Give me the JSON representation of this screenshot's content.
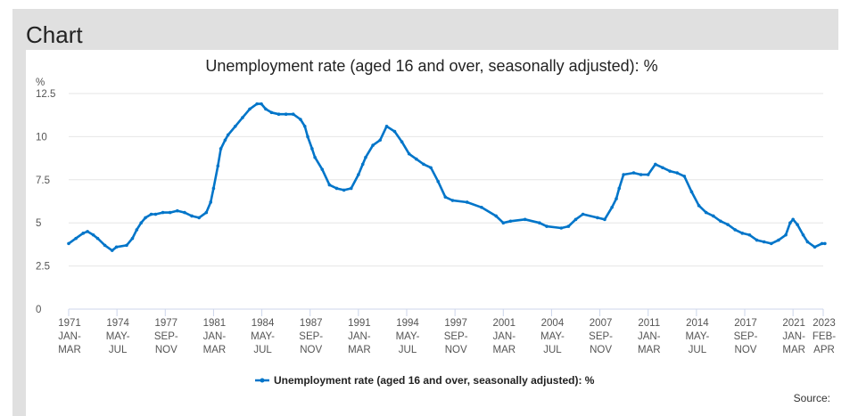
{
  "header": {
    "title": "Chart"
  },
  "source_label": "Source:",
  "chart_data": {
    "type": "line",
    "title": "Unemployment rate (aged 16 and over, seasonally adjusted): %",
    "ylabel": "%",
    "xlabel": "",
    "ylim": [
      0,
      12.5
    ],
    "yticks": [
      "0",
      "2.5",
      "5",
      "7.5",
      "10",
      "12.5"
    ],
    "grid": true,
    "legend_position": "bottom-center",
    "color": "#0075c9",
    "xticks": [
      {
        "year": "1971",
        "period": [
          "JAN-",
          "MAR"
        ],
        "months_from_start": 0
      },
      {
        "year": "1974",
        "period": [
          "MAY-",
          "JUL"
        ],
        "months_from_start": 40
      },
      {
        "year": "1977",
        "period": [
          "SEP-",
          "NOV"
        ],
        "months_from_start": 80
      },
      {
        "year": "1981",
        "period": [
          "JAN-",
          "MAR"
        ],
        "months_from_start": 120
      },
      {
        "year": "1984",
        "period": [
          "MAY-",
          "JUL"
        ],
        "months_from_start": 160
      },
      {
        "year": "1987",
        "period": [
          "SEP-",
          "NOV"
        ],
        "months_from_start": 200
      },
      {
        "year": "1991",
        "period": [
          "JAN-",
          "MAR"
        ],
        "months_from_start": 240
      },
      {
        "year": "1994",
        "period": [
          "MAY-",
          "JUL"
        ],
        "months_from_start": 280
      },
      {
        "year": "1997",
        "period": [
          "SEP-",
          "NOV"
        ],
        "months_from_start": 320
      },
      {
        "year": "2001",
        "period": [
          "JAN-",
          "MAR"
        ],
        "months_from_start": 360
      },
      {
        "year": "2004",
        "period": [
          "MAY-",
          "JUL"
        ],
        "months_from_start": 400
      },
      {
        "year": "2007",
        "period": [
          "SEP-",
          "NOV"
        ],
        "months_from_start": 440
      },
      {
        "year": "2011",
        "period": [
          "JAN-",
          "MAR"
        ],
        "months_from_start": 480
      },
      {
        "year": "2014",
        "period": [
          "MAY-",
          "JUL"
        ],
        "months_from_start": 520
      },
      {
        "year": "2017",
        "period": [
          "SEP-",
          "NOV"
        ],
        "months_from_start": 560
      },
      {
        "year": "2021",
        "period": [
          "JAN-",
          "MAR"
        ],
        "months_from_start": 600
      },
      {
        "year": "2023",
        "period": [
          "FEB-",
          "APR"
        ],
        "months_from_start": 625
      }
    ],
    "series": [
      {
        "name": "Unemployment rate (aged 16 and over, seasonally adjusted): %",
        "x": [
          1971.0,
          1971.5,
          1972.0,
          1972.3,
          1972.7,
          1973.0,
          1973.5,
          1974.0,
          1974.3,
          1975.0,
          1975.4,
          1975.7,
          1976.0,
          1976.3,
          1976.7,
          1977.0,
          1977.5,
          1978.0,
          1978.5,
          1979.0,
          1979.5,
          1980.0,
          1980.5,
          1980.8,
          1981.0,
          1981.3,
          1981.5,
          1981.8,
          1982.0,
          1982.5,
          1983.0,
          1983.5,
          1984.0,
          1984.3,
          1984.6,
          1985.0,
          1985.5,
          1986.0,
          1986.5,
          1987.0,
          1987.3,
          1987.5,
          1987.8,
          1988.0,
          1988.5,
          1989.0,
          1989.5,
          1990.0,
          1990.5,
          1991.0,
          1991.3,
          1991.5,
          1992.0,
          1992.5,
          1992.95,
          1993.5,
          1994.0,
          1994.5,
          1995.0,
          1995.5,
          1996.0,
          1996.5,
          1997.0,
          1997.5,
          1998.5,
          1999.5,
          2000.5,
          2001.0,
          2001.5,
          2002.5,
          2003.5,
          2004.0,
          2005.0,
          2005.5,
          2006.0,
          2006.5,
          2007.5,
          2008.0,
          2008.5,
          2008.8,
          2009.0,
          2009.3,
          2010.0,
          2010.5,
          2011.0,
          2011.5,
          2012.0,
          2012.5,
          2013.0,
          2013.5,
          2014.0,
          2014.5,
          2015.0,
          2015.5,
          2016.0,
          2016.5,
          2017.0,
          2017.5,
          2018.0,
          2018.5,
          2019.0,
          2019.5,
          2020.0,
          2020.5,
          2020.8,
          2021.0,
          2021.3,
          2021.7,
          2022.0,
          2022.5,
          2023.0,
          2023.2
        ],
        "values": [
          3.8,
          4.1,
          4.4,
          4.5,
          4.3,
          4.1,
          3.7,
          3.4,
          3.6,
          3.7,
          4.1,
          4.6,
          5.0,
          5.3,
          5.5,
          5.5,
          5.6,
          5.6,
          5.7,
          5.6,
          5.4,
          5.3,
          5.6,
          6.2,
          7.0,
          8.3,
          9.3,
          9.8,
          10.1,
          10.6,
          11.1,
          11.6,
          11.9,
          11.9,
          11.6,
          11.4,
          11.3,
          11.3,
          11.3,
          11.0,
          10.6,
          10.0,
          9.3,
          8.8,
          8.1,
          7.2,
          7.0,
          6.9,
          7.0,
          7.8,
          8.4,
          8.8,
          9.5,
          9.8,
          10.6,
          10.3,
          9.7,
          9.0,
          8.7,
          8.4,
          8.2,
          7.4,
          6.5,
          6.3,
          6.2,
          5.9,
          5.4,
          5.0,
          5.1,
          5.2,
          5.0,
          4.8,
          4.7,
          4.8,
          5.2,
          5.5,
          5.3,
          5.2,
          5.9,
          6.4,
          7.0,
          7.8,
          7.9,
          7.8,
          7.8,
          8.4,
          8.2,
          8.0,
          7.9,
          7.7,
          6.8,
          6.0,
          5.6,
          5.4,
          5.1,
          4.9,
          4.6,
          4.4,
          4.3,
          4.0,
          3.9,
          3.8,
          4.0,
          4.3,
          5.0,
          5.2,
          4.9,
          4.3,
          3.9,
          3.6,
          3.8,
          3.8
        ]
      }
    ]
  }
}
